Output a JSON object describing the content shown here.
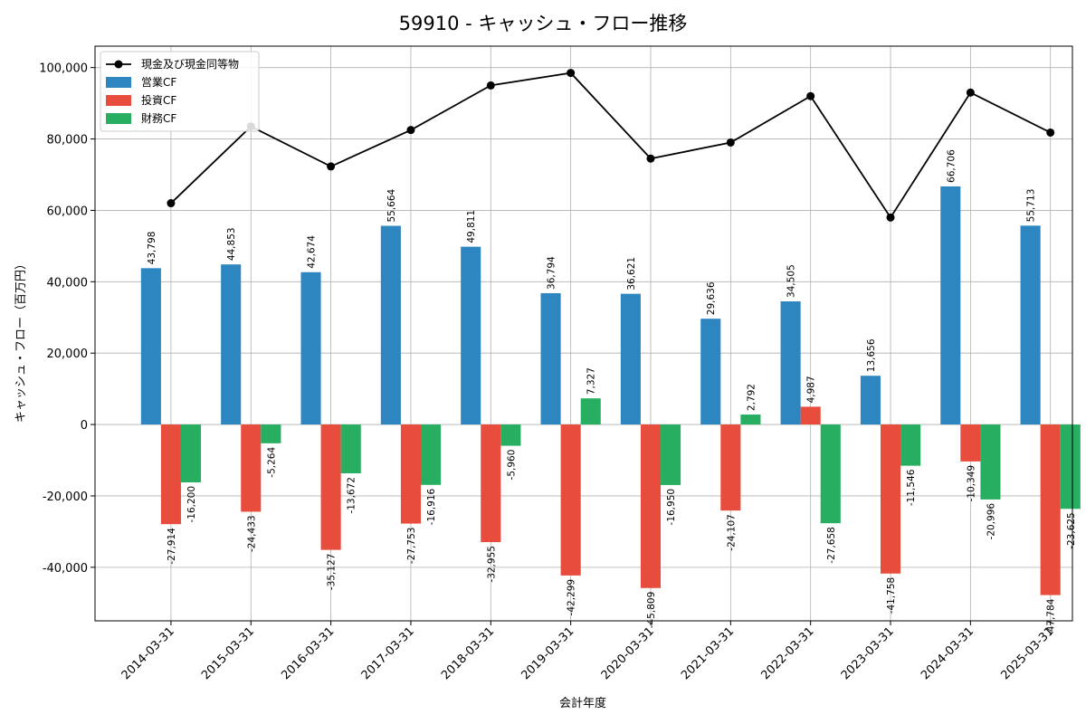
{
  "chart_data": {
    "type": "bar",
    "title": "59910 - キャッシュ・フロー推移",
    "xlabel": "会計年度",
    "ylabel": "キャッシュ・フロー（百万円）",
    "ylim": [
      -55000,
      106000
    ],
    "yticks": [
      -40000,
      -20000,
      0,
      20000,
      40000,
      60000,
      80000,
      100000
    ],
    "ytick_labels": [
      "-40,000",
      "-20,000",
      "0",
      "20,000",
      "40,000",
      "60,000",
      "80,000",
      "100,000"
    ],
    "grid": true,
    "legend_position": "top-left",
    "categories": [
      "2014-03-31",
      "2015-03-31",
      "2016-03-31",
      "2017-03-31",
      "2018-03-31",
      "2019-03-31",
      "2020-03-31",
      "2021-03-31",
      "2022-03-31",
      "2023-03-31",
      "2024-03-31",
      "2025-03-31"
    ],
    "series": [
      {
        "name": "営業CF",
        "kind": "bar",
        "color": "#2e86c1",
        "values": [
          43798,
          44853,
          42674,
          55664,
          49811,
          36794,
          36621,
          29636,
          34505,
          13656,
          66706,
          55713
        ],
        "labels": [
          "43,798",
          "44,853",
          "42,674",
          "55,664",
          "49,811",
          "36,794",
          "36,621",
          "29,636",
          "34,505",
          "13,656",
          "66,706",
          "55,713"
        ]
      },
      {
        "name": "投資CF",
        "kind": "bar",
        "color": "#e74c3c",
        "values": [
          -27914,
          -24433,
          -35127,
          -27753,
          -32955,
          -42299,
          -45809,
          -24107,
          4987,
          -41758,
          -10349,
          -47784
        ],
        "labels": [
          "-27,914",
          "-24,433",
          "-35,127",
          "-27,753",
          "-32,955",
          "-42,299",
          "-45,809",
          "-24,107",
          "4,987",
          "-41,758",
          "-10,349",
          "-47,784"
        ]
      },
      {
        "name": "財務CF",
        "kind": "bar",
        "color": "#27ae60",
        "values": [
          -16200,
          -5264,
          -13672,
          -16916,
          -5960,
          7327,
          -16950,
          2792,
          -27658,
          -11546,
          -20996,
          -23625
        ],
        "labels": [
          "-16,200",
          "-5,264",
          "-13,672",
          "-16,916",
          "-5,960",
          "7,327",
          "-16,950",
          "2,792",
          "-27,658",
          "-11,546",
          "-20,996",
          "-23,625"
        ]
      },
      {
        "name": "現金及び現金同等物",
        "kind": "line",
        "color": "#000000",
        "values": [
          62000,
          83500,
          72300,
          82500,
          95000,
          98500,
          74500,
          79000,
          92000,
          58000,
          93000,
          81800
        ]
      }
    ]
  }
}
